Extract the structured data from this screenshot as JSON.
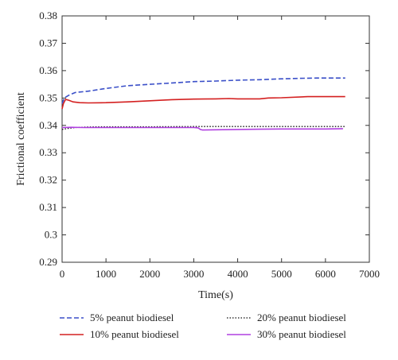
{
  "chart_data": {
    "type": "line",
    "title": "",
    "xlabel": "Time(s)",
    "ylabel": "Frictional coefficient",
    "xlim": [
      0,
      7000
    ],
    "ylim": [
      0.29,
      0.38
    ],
    "xticks": [
      0,
      1000,
      2000,
      3000,
      4000,
      5000,
      6000,
      7000
    ],
    "xtick_labels": [
      "0",
      "1000",
      "2000",
      "3000",
      "4000",
      "5000",
      "6000",
      "7000"
    ],
    "yticks": [
      0.29,
      0.3,
      0.31,
      0.32,
      0.33,
      0.34,
      0.35,
      0.36,
      0.37,
      0.38
    ],
    "ytick_labels": [
      "0.29",
      "0.3",
      "0.31",
      "0.32",
      "0.33",
      "0.34",
      "0.35",
      "0.36",
      "0.37",
      "0.38"
    ],
    "grid": false,
    "legend_position": "below",
    "series": [
      {
        "name": "5% peanut biodiesel",
        "color": "#3a4fc8",
        "style": "dashed",
        "x": [
          0,
          50,
          150,
          300,
          600,
          1000,
          1500,
          2000,
          2500,
          3000,
          3500,
          4000,
          4500,
          5000,
          5500,
          5800,
          6000,
          6450
        ],
        "y": [
          0.348,
          0.35,
          0.351,
          0.352,
          0.3525,
          0.3535,
          0.3545,
          0.355,
          0.3555,
          0.356,
          0.3562,
          0.3565,
          0.3567,
          0.357,
          0.3572,
          0.3573,
          0.3573,
          0.3573
        ]
      },
      {
        "name": "10% peanut biodiesel",
        "color": "#d42020",
        "style": "solid",
        "x": [
          0,
          30,
          80,
          150,
          250,
          400,
          600,
          1000,
          1500,
          2000,
          2500,
          3000,
          3500,
          3800,
          4000,
          4500,
          4700,
          5000,
          5600,
          6000,
          6450
        ],
        "y": [
          0.346,
          0.348,
          0.3495,
          0.3492,
          0.3486,
          0.3483,
          0.3482,
          0.3483,
          0.3486,
          0.349,
          0.3494,
          0.3496,
          0.3497,
          0.3498,
          0.3497,
          0.3497,
          0.35,
          0.3501,
          0.3505,
          0.3505,
          0.3505
        ]
      },
      {
        "name": "20% peanut biodiesel",
        "color": "#111111",
        "style": "dotted",
        "x": [
          0,
          100,
          300,
          600,
          1000,
          2000,
          3000,
          4000,
          5000,
          6000,
          6450
        ],
        "y": [
          0.3385,
          0.3388,
          0.3392,
          0.3394,
          0.3395,
          0.3395,
          0.3396,
          0.3396,
          0.3396,
          0.3396,
          0.3396
        ]
      },
      {
        "name": "30% peanut biodiesel",
        "color": "#b040e0",
        "style": "solid",
        "x": [
          0,
          200,
          500,
          1000,
          1500,
          2000,
          2500,
          3000,
          3100,
          3150,
          3200,
          3500,
          4000,
          4500,
          5000,
          5500,
          6000,
          6400
        ],
        "y": [
          0.3392,
          0.3393,
          0.3392,
          0.3392,
          0.3392,
          0.3392,
          0.3392,
          0.3392,
          0.3391,
          0.3385,
          0.3383,
          0.3384,
          0.3385,
          0.3386,
          0.3387,
          0.3387,
          0.3387,
          0.3388
        ]
      }
    ]
  }
}
